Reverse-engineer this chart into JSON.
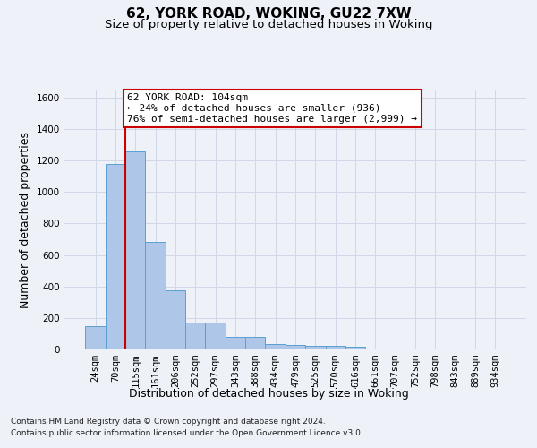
{
  "title": "62, YORK ROAD, WOKING, GU22 7XW",
  "subtitle": "Size of property relative to detached houses in Woking",
  "xlabel": "Distribution of detached houses by size in Woking",
  "ylabel": "Number of detached properties",
  "bar_labels": [
    "24sqm",
    "70sqm",
    "115sqm",
    "161sqm",
    "206sqm",
    "252sqm",
    "297sqm",
    "343sqm",
    "388sqm",
    "434sqm",
    "479sqm",
    "525sqm",
    "570sqm",
    "616sqm",
    "661sqm",
    "707sqm",
    "752sqm",
    "798sqm",
    "843sqm",
    "889sqm",
    "934sqm"
  ],
  "bar_values": [
    150,
    1175,
    1260,
    680,
    375,
    170,
    170,
    80,
    80,
    35,
    30,
    20,
    20,
    15,
    0,
    0,
    0,
    0,
    0,
    0,
    0
  ],
  "bar_color": "#aec6e8",
  "bar_edgecolor": "#5a9fd4",
  "grid_color": "#d0d8e8",
  "background_color": "#eef2f8",
  "property_line_index": 2,
  "property_line_color": "#cc0000",
  "annotation_text": "62 YORK ROAD: 104sqm\n← 24% of detached houses are smaller (936)\n76% of semi-detached houses are larger (2,999) →",
  "annotation_box_edgecolor": "#cc0000",
  "annotation_bg_color": "#ffffff",
  "ylim": [
    0,
    1650
  ],
  "yticks": [
    0,
    200,
    400,
    600,
    800,
    1000,
    1200,
    1400,
    1600
  ],
  "footnote_line1": "Contains HM Land Registry data © Crown copyright and database right 2024.",
  "footnote_line2": "Contains public sector information licensed under the Open Government Licence v3.0.",
  "title_fontsize": 11,
  "subtitle_fontsize": 9.5,
  "xlabel_fontsize": 9,
  "ylabel_fontsize": 9,
  "tick_fontsize": 7.5,
  "annot_fontsize": 8,
  "footnote_fontsize": 6.5
}
